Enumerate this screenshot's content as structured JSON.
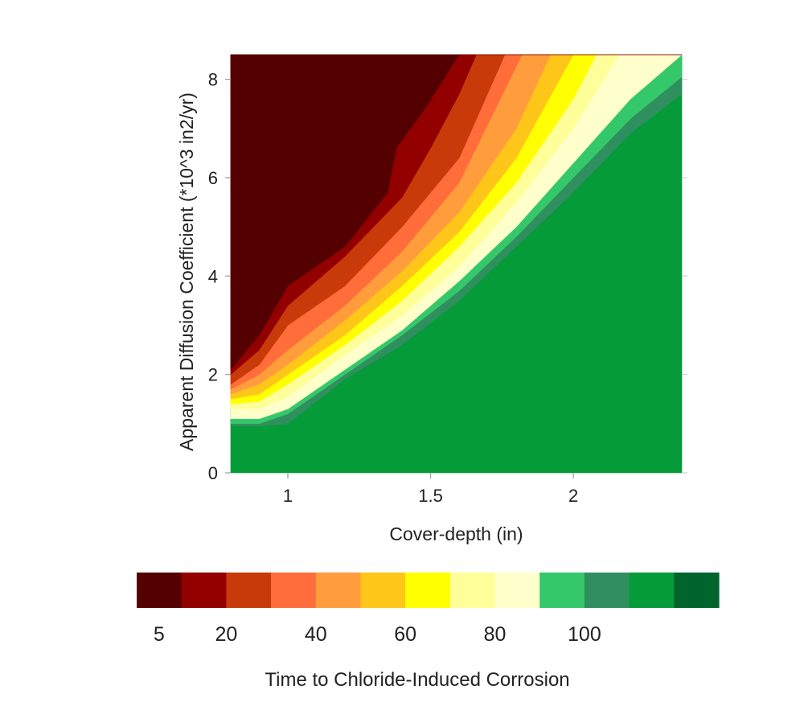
{
  "chart_data": {
    "type": "contour",
    "title": "",
    "xlabel": "Cover-depth (in)",
    "ylabel": "Apparent Diffusion Coefficient (*10^3 in2/yr)",
    "xlim": [
      0.8,
      2.38
    ],
    "ylim": [
      0,
      8.5
    ],
    "x_ticks": [
      1,
      1.5,
      2
    ],
    "x_tick_labels": [
      "1",
      "1.5",
      "2"
    ],
    "y_ticks": [
      0,
      2,
      4,
      6,
      8
    ],
    "y_tick_labels": [
      "0",
      "2",
      "4",
      "6",
      "8"
    ],
    "grid": false,
    "legend": {
      "title": "Time to Chloride-Induced Corrosion",
      "placement": "bottom",
      "levels": [
        {
          "range": [
            0,
            10
          ],
          "color": "#540000"
        },
        {
          "range": [
            10,
            20
          ],
          "color": "#930000"
        },
        {
          "range": [
            20,
            30
          ],
          "color": "#c93a0a"
        },
        {
          "range": [
            30,
            40
          ],
          "color": "#ff6d3a"
        },
        {
          "range": [
            40,
            50
          ],
          "color": "#ff9d3c"
        },
        {
          "range": [
            50,
            60
          ],
          "color": "#ffc61a"
        },
        {
          "range": [
            60,
            70
          ],
          "color": "#ffff00"
        },
        {
          "range": [
            70,
            80
          ],
          "color": "#ffff99"
        },
        {
          "range": [
            80,
            90
          ],
          "color": "#ffffcc"
        },
        {
          "range": [
            90,
            100
          ],
          "color": "#35c86a"
        },
        {
          "range": [
            100,
            110
          ],
          "color": "#2f8f5e"
        },
        {
          "range": [
            110,
            120
          ],
          "color": "#049b38"
        },
        {
          "range": [
            120,
            130
          ],
          "color": "#00642d"
        }
      ],
      "tick_values": [
        5,
        20,
        40,
        60,
        80,
        100
      ],
      "tick_labels": [
        "5",
        "20",
        "40",
        "60",
        "80",
        "100"
      ]
    },
    "level_boundaries": [
      {
        "upper_color": "#540000",
        "points": [
          [
            0.8,
            2.1
          ],
          [
            0.9,
            2.8
          ],
          [
            1.0,
            3.8
          ],
          [
            1.2,
            4.6
          ],
          [
            1.35,
            5.7
          ],
          [
            1.38,
            6.6
          ],
          [
            1.48,
            7.4
          ],
          [
            1.6,
            8.5
          ]
        ]
      },
      {
        "upper_color": "#930000",
        "points": [
          [
            0.8,
            2.0
          ],
          [
            0.9,
            2.5
          ],
          [
            1.0,
            3.4
          ],
          [
            1.2,
            4.4
          ],
          [
            1.4,
            5.6
          ],
          [
            1.5,
            6.6
          ],
          [
            1.6,
            7.7
          ],
          [
            1.66,
            8.5
          ]
        ]
      },
      {
        "upper_color": "#c93a0a",
        "points": [
          [
            0.8,
            1.8
          ],
          [
            0.9,
            2.2
          ],
          [
            1.0,
            3.0
          ],
          [
            1.2,
            3.8
          ],
          [
            1.4,
            5.0
          ],
          [
            1.6,
            6.4
          ],
          [
            1.76,
            8.5
          ]
        ]
      },
      {
        "upper_color": "#ff6d3a",
        "points": [
          [
            0.8,
            1.7
          ],
          [
            0.9,
            2.0
          ],
          [
            1.0,
            2.5
          ],
          [
            1.2,
            3.4
          ],
          [
            1.4,
            4.5
          ],
          [
            1.6,
            5.9
          ],
          [
            1.82,
            8.5
          ]
        ]
      },
      {
        "upper_color": "#ff9d3c",
        "points": [
          [
            0.8,
            1.6
          ],
          [
            0.9,
            1.8
          ],
          [
            1.0,
            2.2
          ],
          [
            1.2,
            3.1
          ],
          [
            1.4,
            4.1
          ],
          [
            1.6,
            5.3
          ],
          [
            1.8,
            7.0
          ],
          [
            1.92,
            8.5
          ]
        ]
      },
      {
        "upper_color": "#ffc61a",
        "points": [
          [
            0.8,
            1.5
          ],
          [
            0.9,
            1.6
          ],
          [
            1.0,
            2.0
          ],
          [
            1.2,
            2.8
          ],
          [
            1.4,
            3.8
          ],
          [
            1.6,
            4.9
          ],
          [
            1.8,
            6.4
          ],
          [
            2.0,
            8.5
          ]
        ]
      },
      {
        "upper_color": "#ffff00",
        "points": [
          [
            0.8,
            1.4
          ],
          [
            0.9,
            1.45
          ],
          [
            1.0,
            1.8
          ],
          [
            1.2,
            2.6
          ],
          [
            1.4,
            3.5
          ],
          [
            1.6,
            4.6
          ],
          [
            1.8,
            5.9
          ],
          [
            2.0,
            7.6
          ],
          [
            2.08,
            8.5
          ]
        ]
      },
      {
        "upper_color": "#ffff99",
        "points": [
          [
            0.8,
            1.3
          ],
          [
            0.9,
            1.3
          ],
          [
            1.0,
            1.55
          ],
          [
            1.2,
            2.4
          ],
          [
            1.4,
            3.2
          ],
          [
            1.6,
            4.2
          ],
          [
            1.8,
            5.5
          ],
          [
            2.0,
            7.0
          ],
          [
            2.16,
            8.5
          ]
        ]
      },
      {
        "upper_color": "#ffffcc",
        "points": [
          [
            0.8,
            1.1
          ],
          [
            0.9,
            1.1
          ],
          [
            1.0,
            1.3
          ],
          [
            1.2,
            2.1
          ],
          [
            1.4,
            2.9
          ],
          [
            1.6,
            3.9
          ],
          [
            1.8,
            5.0
          ],
          [
            2.0,
            6.3
          ],
          [
            2.2,
            7.6
          ],
          [
            2.38,
            8.5
          ]
        ]
      },
      {
        "upper_color": "#35c86a",
        "points": [
          [
            0.8,
            1.0
          ],
          [
            0.9,
            1.0
          ],
          [
            1.0,
            1.2
          ],
          [
            1.2,
            2.0
          ],
          [
            1.4,
            2.8
          ],
          [
            1.6,
            3.7
          ],
          [
            1.8,
            4.8
          ],
          [
            2.0,
            6.0
          ],
          [
            2.2,
            7.2
          ],
          [
            2.38,
            8.05
          ]
        ]
      },
      {
        "upper_color": "#2f8f5e",
        "points": [
          [
            0.8,
            0.95
          ],
          [
            0.9,
            0.95
          ],
          [
            1.0,
            1.0
          ],
          [
            1.2,
            1.9
          ],
          [
            1.4,
            2.6
          ],
          [
            1.6,
            3.5
          ],
          [
            1.8,
            4.6
          ],
          [
            2.0,
            5.7
          ],
          [
            2.2,
            6.9
          ],
          [
            2.38,
            7.7
          ]
        ]
      },
      {
        "upper_color": "#049b38",
        "points": [
          [
            0.8,
            0
          ],
          [
            2.38,
            0
          ]
        ]
      }
    ]
  }
}
